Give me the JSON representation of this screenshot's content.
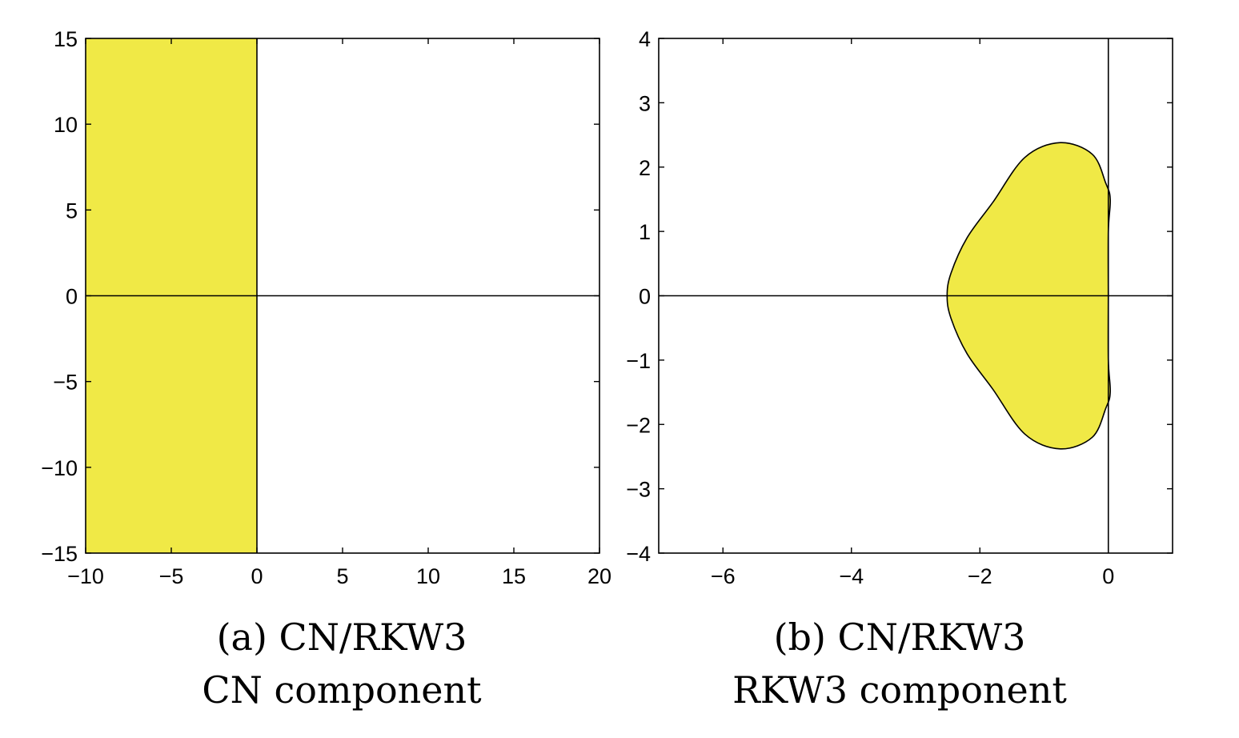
{
  "chart_data": [
    {
      "type": "area",
      "caption_line1": "(a) CN/RKW3",
      "caption_line2": "CN component",
      "xlim": [
        -10,
        20
      ],
      "ylim": [
        -15,
        15
      ],
      "xticks": [
        -10,
        -5,
        0,
        5,
        10,
        15,
        20
      ],
      "yticks": [
        -15,
        -10,
        -5,
        0,
        5,
        10,
        15
      ],
      "xtick_labels": [
        "−10",
        "−5",
        "0",
        "5",
        "10",
        "15",
        "20"
      ],
      "ytick_labels": [
        "−15",
        "−10",
        "−5",
        "0",
        "5",
        "10",
        "15"
      ],
      "region": {
        "description": "stability region Re(z) <= 0",
        "x_range": [
          -10,
          0
        ],
        "y_range": [
          -15,
          15
        ]
      },
      "fill_color": "#f0e946",
      "grid": false
    },
    {
      "type": "area",
      "caption_line1": "(b) CN/RKW3",
      "caption_line2": "RKW3 component",
      "xlim": [
        -7,
        1
      ],
      "ylim": [
        -4,
        4
      ],
      "xticks": [
        -6,
        -4,
        -2,
        0
      ],
      "yticks": [
        -4,
        -3,
        -2,
        -1,
        0,
        1,
        2,
        3,
        4
      ],
      "xtick_labels": [
        "−6",
        "−4",
        "−2",
        "0"
      ],
      "ytick_labels": [
        "−4",
        "−3",
        "−2",
        "−1",
        "0",
        "1",
        "2",
        "3",
        "4"
      ],
      "region": {
        "description": "stability region |1 + z + z^2/2 + z^3/6| <= 1",
        "boundary_points": [
          {
            "x": 0.0,
            "y": 0.0
          },
          {
            "x": 0.0,
            "y": 1.0
          },
          {
            "x": 0.03,
            "y": 1.5
          },
          {
            "x": -0.04,
            "y": 1.75
          },
          {
            "x": -0.25,
            "y": 2.2
          },
          {
            "x": -0.75,
            "y": 2.38
          },
          {
            "x": -1.3,
            "y": 2.15
          },
          {
            "x": -1.8,
            "y": 1.45
          },
          {
            "x": -2.2,
            "y": 0.9
          },
          {
            "x": -2.45,
            "y": 0.35
          },
          {
            "x": -2.51,
            "y": 0.0
          }
        ]
      },
      "fill_color": "#f0e946",
      "grid": false
    }
  ]
}
